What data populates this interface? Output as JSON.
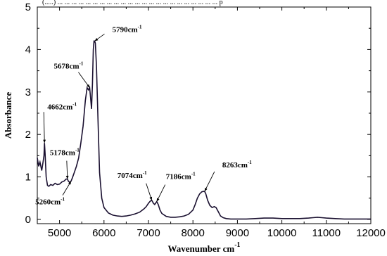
{
  "chart_data": {
    "type": "line",
    "title": "",
    "top_crop_text": "(.....) ... ... ... ... ... ... ... ... ... ... ... ... ... ... ... ... ... ... ... ... ... ... ... p",
    "xlabel": "Wavenumber cm",
    "xlabel_superscript": "-1",
    "ylabel": "Absorbance",
    "xlim": [
      4500,
      12000
    ],
    "ylim": [
      -0.1,
      5
    ],
    "x_ticks": [
      5000,
      6000,
      7000,
      8000,
      9000,
      10000,
      11000,
      12000
    ],
    "x_tick_labels": [
      "5000",
      "6000",
      "7000",
      "8000",
      "9000",
      "10000",
      "11000",
      "12000"
    ],
    "y_ticks": [
      0,
      1,
      2,
      3,
      4,
      5
    ],
    "y_tick_labels": [
      "0",
      "1",
      "2",
      "3",
      "4",
      "5"
    ],
    "grid": false,
    "line_color": "#1a1030",
    "series": [
      {
        "x": [
          4500,
          4530,
          4560,
          4600,
          4630,
          4650,
          4662,
          4675,
          4700,
          4730,
          4760,
          4800,
          4850,
          4900,
          4950,
          5000,
          5050,
          5100,
          5150,
          5178,
          5200,
          5230,
          5260,
          5290,
          5330,
          5380,
          5430,
          5480,
          5530,
          5580,
          5620,
          5650,
          5678,
          5700,
          5720,
          5740,
          5760,
          5775,
          5790,
          5805,
          5830,
          5860,
          5900,
          5950,
          6000,
          6100,
          6200,
          6300,
          6400,
          6500,
          6600,
          6700,
          6800,
          6900,
          6950,
          7000,
          7040,
          7074,
          7110,
          7140,
          7160,
          7186,
          7220,
          7260,
          7300,
          7400,
          7500,
          7600,
          7700,
          7800,
          7900,
          8000,
          8050,
          8100,
          8150,
          8200,
          8240,
          8263,
          8290,
          8330,
          8380,
          8430,
          8480,
          8520,
          8550,
          8580,
          8620,
          8680,
          8750,
          8850,
          9000,
          9200,
          9400,
          9600,
          9800,
          10000,
          10200,
          10400,
          10600,
          10700,
          10800,
          10900,
          11000,
          11200,
          11400,
          11600,
          11800,
          12000
        ],
        "y": [
          1.45,
          1.25,
          1.35,
          1.15,
          1.35,
          1.5,
          1.8,
          1.55,
          1.0,
          0.8,
          0.78,
          0.82,
          0.8,
          0.85,
          0.82,
          0.83,
          0.88,
          0.9,
          0.95,
          0.95,
          0.9,
          0.87,
          0.9,
          0.98,
          1.1,
          1.25,
          1.45,
          1.8,
          2.2,
          2.8,
          3.1,
          3.05,
          3.1,
          2.85,
          2.6,
          3.2,
          4.0,
          4.2,
          4.2,
          4.15,
          3.6,
          2.5,
          1.1,
          0.5,
          0.28,
          0.15,
          0.1,
          0.08,
          0.07,
          0.08,
          0.1,
          0.13,
          0.17,
          0.25,
          0.3,
          0.38,
          0.43,
          0.45,
          0.38,
          0.35,
          0.38,
          0.42,
          0.35,
          0.22,
          0.14,
          0.07,
          0.05,
          0.05,
          0.06,
          0.08,
          0.12,
          0.22,
          0.35,
          0.5,
          0.6,
          0.65,
          0.66,
          0.66,
          0.6,
          0.45,
          0.33,
          0.28,
          0.3,
          0.28,
          0.22,
          0.16,
          0.08,
          0.04,
          0.02,
          0.01,
          0.01,
          0.01,
          0.02,
          0.03,
          0.03,
          0.02,
          0.02,
          0.02,
          0.03,
          0.04,
          0.05,
          0.04,
          0.03,
          0.02,
          0.01,
          0.01,
          0.01,
          0.01
        ]
      }
    ],
    "annotations": [
      {
        "text": "4662cm",
        "sup": "-1",
        "x": 4662,
        "y": 1.8
      },
      {
        "text": "5178cm",
        "sup": "-1",
        "x": 5178,
        "y": 0.95
      },
      {
        "text": "5260cm",
        "sup": "-1",
        "x": 5260,
        "y": 0.9
      },
      {
        "text": "5678cm",
        "sup": "-1",
        "x": 5678,
        "y": 3.1
      },
      {
        "text": "5790cm",
        "sup": "-1",
        "x": 5790,
        "y": 4.2
      },
      {
        "text": "7074cm",
        "sup": "-1",
        "x": 7074,
        "y": 0.45
      },
      {
        "text": "7186cm",
        "sup": "-1",
        "x": 7186,
        "y": 0.42
      },
      {
        "text": "8263cm",
        "sup": "-1",
        "x": 8263,
        "y": 0.66
      }
    ]
  }
}
